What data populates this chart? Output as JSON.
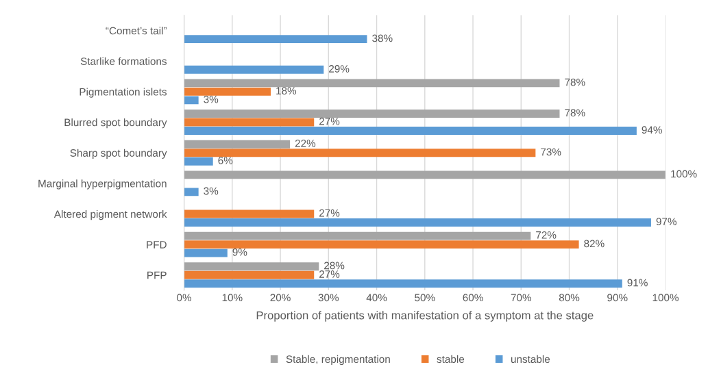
{
  "chart_data": {
    "type": "bar",
    "orientation": "horizontal",
    "categories": [
      "“Comet’s tail”",
      "Starlike formations",
      "Pigmentation islets",
      "Blurred spot boundary",
      "Sharp spot boundary",
      "Marginal hyperpigmentation",
      "Altered pigment network",
      "PFD",
      "PFP"
    ],
    "series": [
      {
        "name": "Stable, repigmentation",
        "color": "#a5a5a5",
        "values": [
          null,
          null,
          78,
          78,
          22,
          100,
          null,
          72,
          28
        ],
        "value_labels": [
          null,
          null,
          "78%",
          "78%",
          "22%",
          "100%",
          null,
          "72%",
          "28%"
        ]
      },
      {
        "name": "stable",
        "color": "#ed7d31",
        "values": [
          null,
          null,
          18,
          27,
          73,
          null,
          27,
          82,
          27
        ],
        "value_labels": [
          null,
          null,
          "18%",
          "27%",
          "73%",
          null,
          "27%",
          "82%",
          "27%"
        ]
      },
      {
        "name": "unstable",
        "color": "#5b9bd5",
        "values": [
          38,
          29,
          3,
          94,
          6,
          3,
          97,
          9,
          91
        ],
        "value_labels": [
          "38%",
          "29%",
          "3%",
          "94%",
          "6%",
          "3%",
          "97%",
          "9%",
          "91%"
        ]
      }
    ],
    "xlabel": "Proportion of patients with manifestation of a symptom at the stage",
    "xlim": [
      0,
      100
    ],
    "xticks": [
      {
        "value": 0,
        "label": "0%"
      },
      {
        "value": 10,
        "label": "10%"
      },
      {
        "value": 20,
        "label": "20%"
      },
      {
        "value": 30,
        "label": "30%"
      },
      {
        "value": 40,
        "label": "40%"
      },
      {
        "value": 50,
        "label": "50%"
      },
      {
        "value": 60,
        "label": "60%"
      },
      {
        "value": 70,
        "label": "70%"
      },
      {
        "value": 80,
        "label": "80%"
      },
      {
        "value": 90,
        "label": "90%"
      },
      {
        "value": 100,
        "label": "100%"
      }
    ],
    "grid": "x",
    "legend": "bottom"
  }
}
